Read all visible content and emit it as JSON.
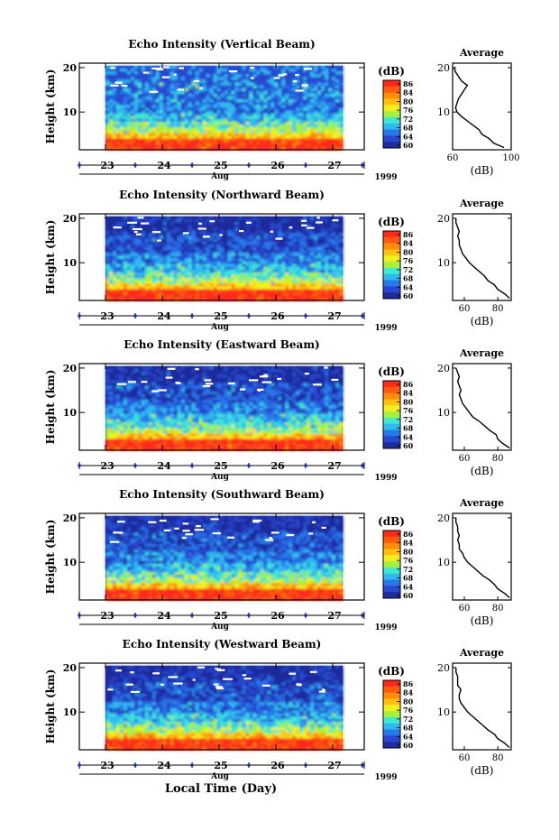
{
  "figure": {
    "day_axis_label": "Aug",
    "year_label": "1999",
    "bottom_xlabel": "Local Time (Day)",
    "colorbar_unit": "(dB)",
    "colorbar_ticks": [
      "86",
      "84",
      "80",
      "76",
      "72",
      "68",
      "64",
      "60"
    ],
    "colormap": [
      "#ff2a1a",
      "#ff5a10",
      "#ff8c0a",
      "#ffc010",
      "#f0f020",
      "#a8f040",
      "#40e8d0",
      "#30b8f0",
      "#2878e8",
      "#2848d0",
      "#1e2c9c"
    ]
  },
  "chart_data": [
    {
      "type": "heatmap",
      "title": "Echo Intensity (Vertical Beam)",
      "ylabel": "Height (km)",
      "yticks": [
        10,
        20
      ],
      "ylim": [
        1.5,
        21
      ],
      "xticks": [
        "23",
        "24",
        "25",
        "26",
        "27"
      ],
      "value_unit": "dB",
      "value_range": [
        60,
        88
      ],
      "profile": {
        "title": "Average",
        "xlabel": "(dB)",
        "xticks": [
          60,
          100
        ],
        "xlim": [
          60,
          100
        ],
        "points": [
          [
            95,
            2
          ],
          [
            88,
            3
          ],
          [
            85,
            4
          ],
          [
            80,
            5
          ],
          [
            78,
            6
          ],
          [
            74,
            7
          ],
          [
            70,
            8
          ],
          [
            66,
            9
          ],
          [
            63,
            10
          ],
          [
            62,
            11
          ],
          [
            63,
            12
          ],
          [
            64,
            13
          ],
          [
            66,
            14
          ],
          [
            68,
            15
          ],
          [
            70,
            16
          ],
          [
            68,
            16.5
          ],
          [
            66,
            17
          ],
          [
            64,
            18
          ],
          [
            62,
            19
          ],
          [
            61,
            20
          ]
        ]
      }
    },
    {
      "type": "heatmap",
      "title": "Echo Intensity (Northward Beam)",
      "ylabel": "Height (km)",
      "yticks": [
        10,
        20
      ],
      "ylim": [
        1.5,
        21
      ],
      "xticks": [
        "23",
        "24",
        "25",
        "26",
        "27"
      ],
      "value_unit": "dB",
      "value_range": [
        60,
        88
      ],
      "profile": {
        "title": "Average",
        "xlabel": "(dB)",
        "xticks": [
          60,
          80
        ],
        "xlim": [
          53,
          88
        ],
        "points": [
          [
            87,
            2
          ],
          [
            84,
            3
          ],
          [
            80,
            4
          ],
          [
            78,
            5
          ],
          [
            74,
            6
          ],
          [
            72,
            7
          ],
          [
            69,
            8
          ],
          [
            66,
            9
          ],
          [
            63,
            10
          ],
          [
            61,
            11
          ],
          [
            59,
            12
          ],
          [
            58,
            13
          ],
          [
            57,
            14
          ],
          [
            57,
            15
          ],
          [
            56,
            16
          ],
          [
            57,
            17
          ],
          [
            56,
            18
          ],
          [
            55,
            19
          ],
          [
            55,
            20
          ]
        ]
      }
    },
    {
      "type": "heatmap",
      "title": "Echo Intensity (Eastward Beam)",
      "ylabel": "Height (km)",
      "yticks": [
        10,
        20
      ],
      "ylim": [
        1.5,
        21
      ],
      "xticks": [
        "23",
        "24",
        "25",
        "26",
        "27"
      ],
      "value_unit": "dB",
      "value_range": [
        60,
        88
      ],
      "profile": {
        "title": "Average",
        "xlabel": "(dB)",
        "xticks": [
          60,
          80
        ],
        "xlim": [
          53,
          88
        ],
        "points": [
          [
            87,
            2
          ],
          [
            83,
            3
          ],
          [
            80,
            4
          ],
          [
            79,
            5
          ],
          [
            75,
            6
          ],
          [
            72,
            7
          ],
          [
            69,
            8
          ],
          [
            65,
            9
          ],
          [
            63,
            10
          ],
          [
            61,
            11
          ],
          [
            59,
            12
          ],
          [
            58,
            13
          ],
          [
            57,
            14
          ],
          [
            58,
            15
          ],
          [
            57,
            16
          ],
          [
            56,
            17
          ],
          [
            57,
            18
          ],
          [
            56,
            19
          ],
          [
            55,
            20
          ]
        ]
      }
    },
    {
      "type": "heatmap",
      "title": "Echo Intensity (Southward Beam)",
      "ylabel": "Height (km)",
      "yticks": [
        10,
        20
      ],
      "ylim": [
        1.5,
        21
      ],
      "xticks": [
        "23",
        "24",
        "25",
        "26",
        "27"
      ],
      "value_unit": "dB",
      "value_range": [
        60,
        88
      ],
      "profile": {
        "title": "Average",
        "xlabel": "(dB)",
        "xticks": [
          60,
          80
        ],
        "xlim": [
          53,
          88
        ],
        "points": [
          [
            87,
            2
          ],
          [
            84,
            3
          ],
          [
            80,
            4
          ],
          [
            78,
            5
          ],
          [
            75,
            6
          ],
          [
            71,
            7
          ],
          [
            68,
            8
          ],
          [
            65,
            9
          ],
          [
            62,
            10
          ],
          [
            60,
            11
          ],
          [
            59,
            12
          ],
          [
            57,
            13
          ],
          [
            57,
            14
          ],
          [
            56,
            15
          ],
          [
            57,
            16
          ],
          [
            56,
            17
          ],
          [
            56,
            18
          ],
          [
            55,
            19
          ],
          [
            55,
            20
          ]
        ]
      }
    },
    {
      "type": "heatmap",
      "title": "Echo Intensity (Westward Beam)",
      "ylabel": "Height (km)",
      "yticks": [
        10,
        20
      ],
      "ylim": [
        1.5,
        21
      ],
      "xticks": [
        "23",
        "24",
        "25",
        "26",
        "27"
      ],
      "value_unit": "dB",
      "value_range": [
        60,
        88
      ],
      "profile": {
        "title": "Average",
        "xlabel": "(dB)",
        "xticks": [
          60,
          80
        ],
        "xlim": [
          53,
          88
        ],
        "points": [
          [
            87,
            2
          ],
          [
            84,
            3
          ],
          [
            80,
            4
          ],
          [
            78,
            5
          ],
          [
            74,
            6
          ],
          [
            71,
            7
          ],
          [
            68,
            8
          ],
          [
            65,
            9
          ],
          [
            62,
            10
          ],
          [
            60,
            11
          ],
          [
            58,
            12
          ],
          [
            57,
            13
          ],
          [
            57,
            14
          ],
          [
            58,
            15
          ],
          [
            56,
            16
          ],
          [
            56,
            17
          ],
          [
            56,
            18
          ],
          [
            55,
            19
          ],
          [
            55,
            20
          ]
        ]
      }
    }
  ]
}
